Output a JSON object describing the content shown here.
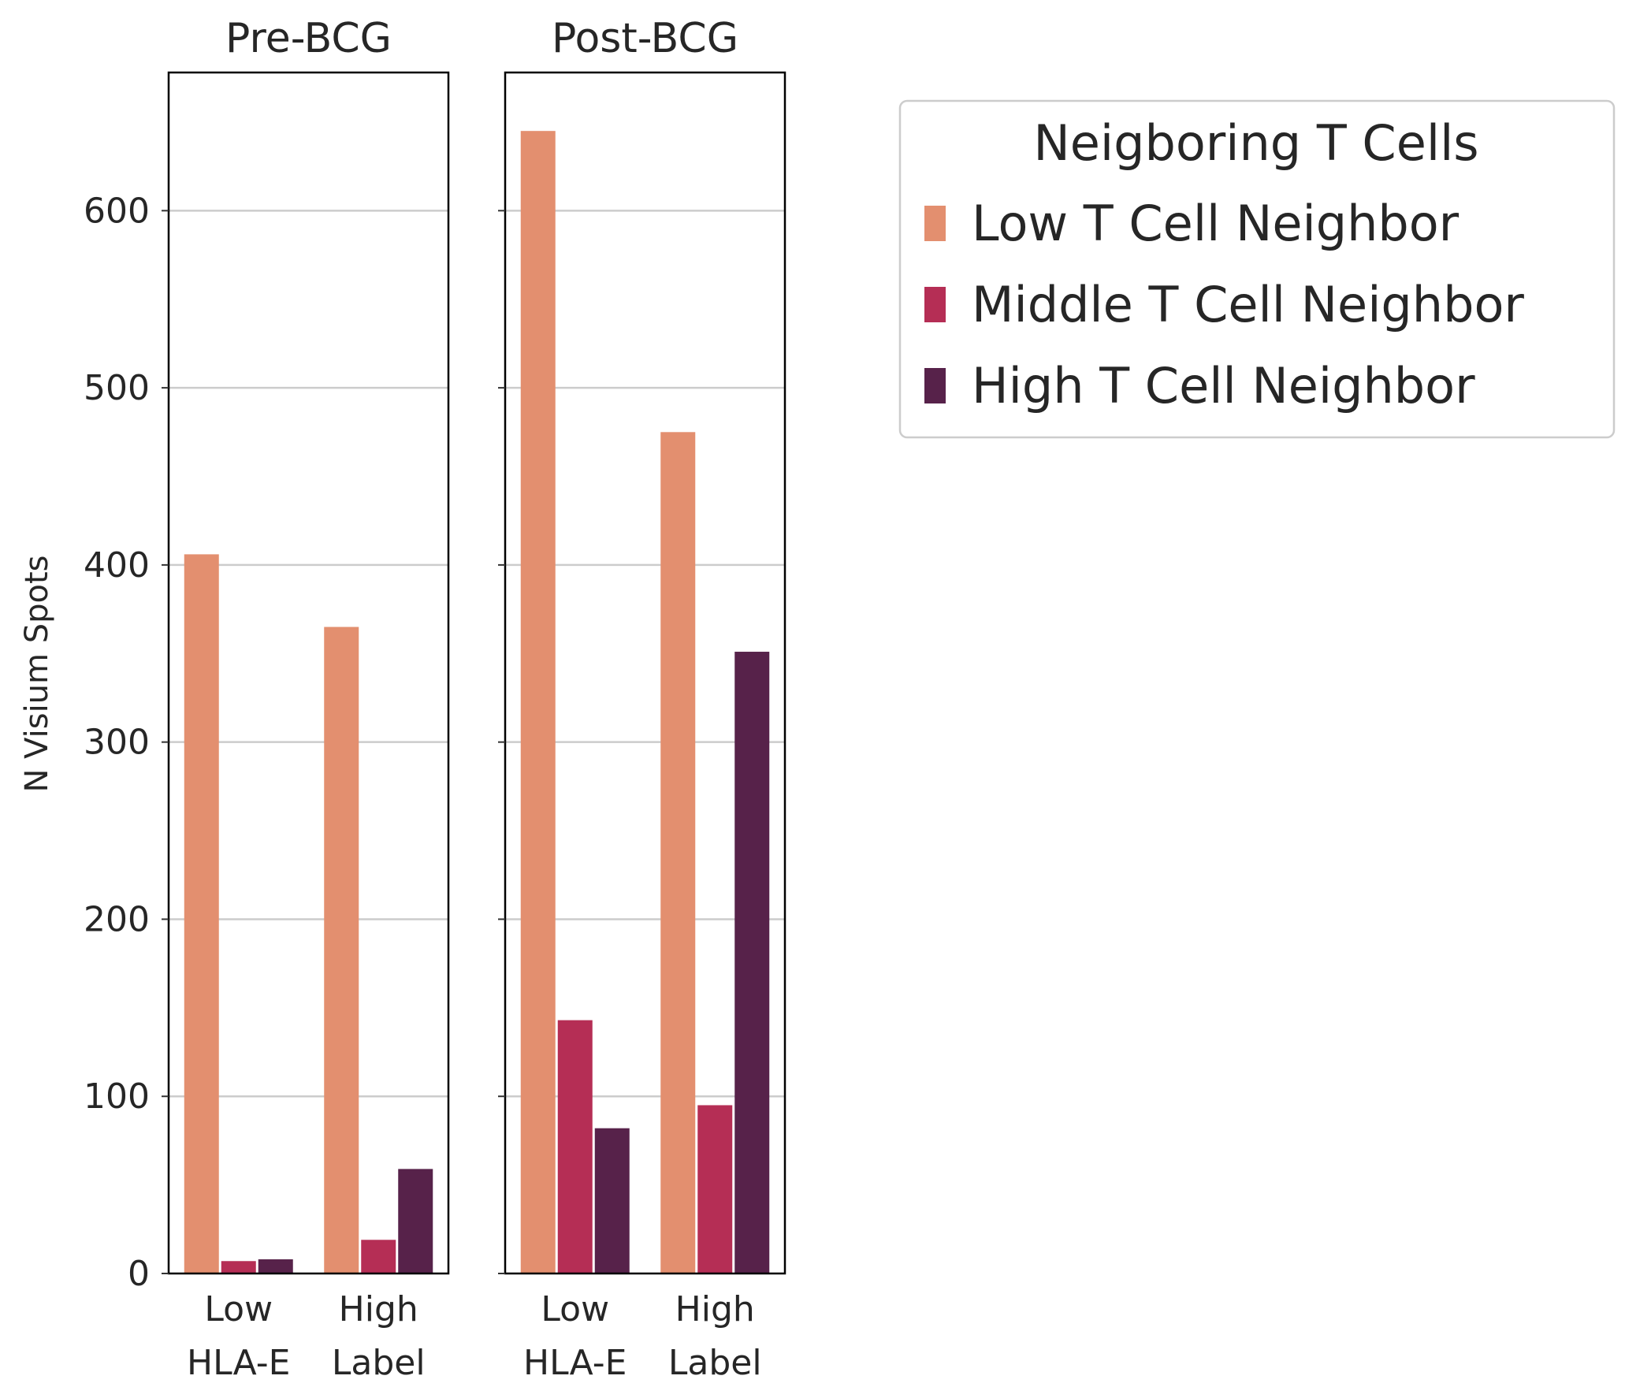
{
  "chart_data": {
    "type": "bar",
    "ylabel": "N Visium Spots",
    "ylim": [
      0,
      678
    ],
    "yticks": [
      0,
      100,
      200,
      300,
      400,
      500,
      600
    ],
    "grid": true,
    "xaxis_line1": [
      "Low",
      "High"
    ],
    "xaxis_line2": [
      "HLA-E",
      "Label"
    ],
    "panels": [
      {
        "title": "Pre-BCG",
        "categories": [
          "Low",
          "High"
        ],
        "series": [
          {
            "name": "Low T Cell Neighbor",
            "values": [
              406,
              365
            ]
          },
          {
            "name": "Middle T Cell Neighbor",
            "values": [
              7,
              19
            ]
          },
          {
            "name": "High T Cell Neighbor",
            "values": [
              8,
              59
            ]
          }
        ]
      },
      {
        "title": "Post-BCG",
        "categories": [
          "Low",
          "High"
        ],
        "series": [
          {
            "name": "Low T Cell Neighbor",
            "values": [
              645,
              475
            ]
          },
          {
            "name": "Middle T Cell Neighbor",
            "values": [
              143,
              95
            ]
          },
          {
            "name": "High T Cell Neighbor",
            "values": [
              82,
              351
            ]
          }
        ]
      }
    ],
    "legend": {
      "title": "Neigboring T Cells",
      "placement": "right",
      "entries": [
        "Low T Cell Neighbor",
        "Middle T Cell Neighbor",
        "High T Cell Neighbor"
      ]
    },
    "colors": [
      "#e38f6f",
      "#b52e55",
      "#57224a"
    ]
  }
}
